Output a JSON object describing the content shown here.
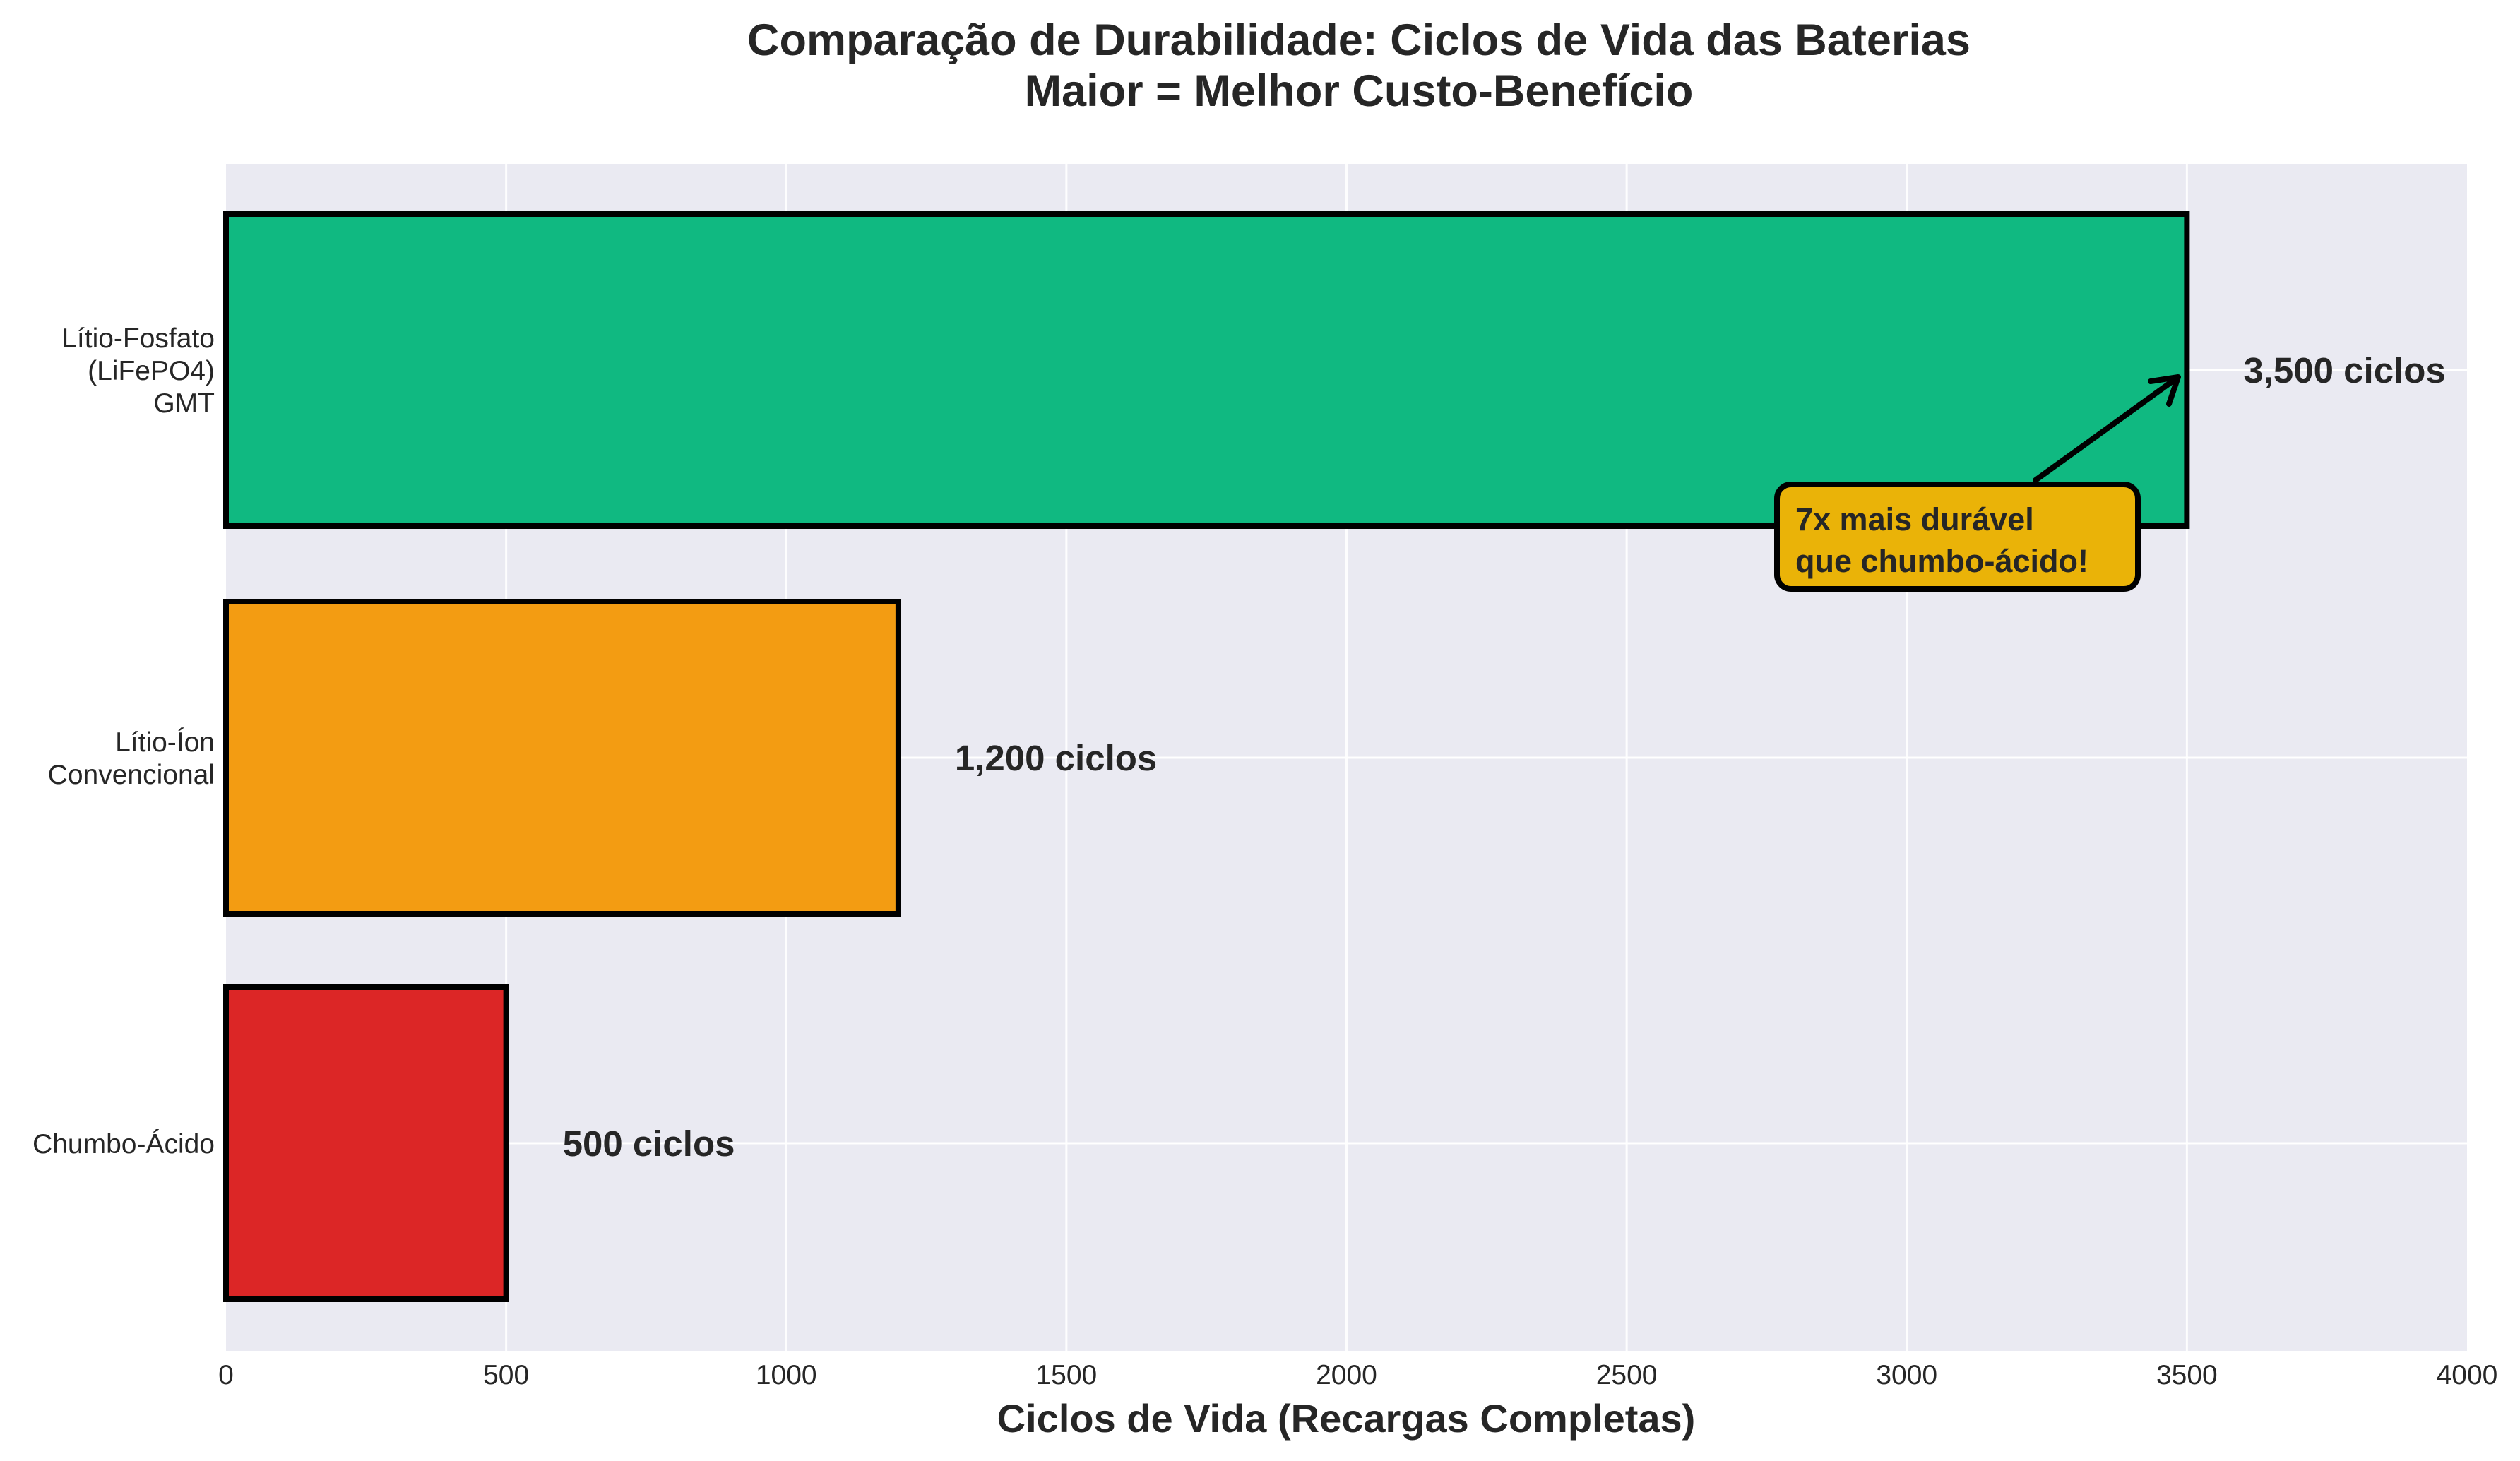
{
  "chart_data": {
    "type": "bar",
    "orientation": "horizontal",
    "title": "Comparação de Durabilidade: Ciclos de Vida das Baterias",
    "subtitle": "Maior = Melhor Custo-Benefício",
    "xlabel": "Ciclos de Vida (Recargas Completas)",
    "ylabel": "",
    "categories": [
      "Lítio-Fosfato\n(LiFePO4)\nGMT",
      "Lítio-Íon\nConvencional",
      "Chumbo-Ácido"
    ],
    "category_lines": [
      [
        "Lítio-Fosfato",
        "(LiFePO4)",
        "GMT"
      ],
      [
        "Lítio-Íon",
        "Convencional"
      ],
      [
        "Chumbo-Ácido"
      ]
    ],
    "values": [
      3500,
      1200,
      500
    ],
    "value_labels": [
      "3,500 ciclos",
      "1,200 ciclos",
      "500 ciclos"
    ],
    "colors": [
      "#10B981",
      "#F39C12",
      "#DC2626"
    ],
    "edge_color": "#000000",
    "xlim": [
      0,
      4000
    ],
    "xticks": [
      0,
      500,
      1000,
      1500,
      2000,
      2500,
      3000,
      3500,
      4000
    ],
    "xtick_labels": [
      "0",
      "500",
      "1000",
      "1500",
      "2000",
      "2500",
      "3000",
      "3500",
      "4000"
    ],
    "grid": true,
    "background": "#EAEAF2",
    "annotations": [
      {
        "text_lines": [
          "7x mais durável",
          "que chumbo-ácido!"
        ],
        "xy": [
          3500,
          "Lítio-Fosfato (LiFePO4) GMT"
        ],
        "box_color": "#EAB308",
        "arrow": true
      }
    ]
  },
  "title_lines": [
    "Comparação de Durabilidade: Ciclos de Vida das Baterias",
    "Maior = Melhor Custo-Benefício"
  ]
}
